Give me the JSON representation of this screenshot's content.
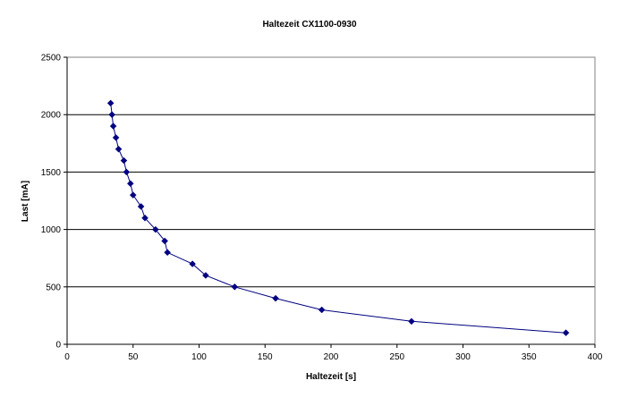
{
  "chart_data": {
    "type": "line",
    "title": "Haltezeit CX1100-0930",
    "xlabel": "Haltezeit [s]",
    "ylabel": "Last [mA]",
    "xlim": [
      0,
      400
    ],
    "ylim": [
      0,
      2500
    ],
    "x_ticks": [
      "0",
      "50",
      "100",
      "150",
      "200",
      "250",
      "300",
      "350",
      "400"
    ],
    "y_ticks": [
      "0",
      "500",
      "1000",
      "1500",
      "2000",
      "2500"
    ],
    "grid": "horizontal",
    "legend": "none",
    "colors": {
      "series": "#000080",
      "grid": "#000000",
      "plot_background": "#ffffff"
    },
    "series": [
      {
        "marker": "diamond",
        "x": [
          33,
          34,
          35,
          37,
          39,
          43,
          45,
          48,
          50,
          56,
          59,
          67,
          74,
          76,
          95,
          105,
          127,
          158,
          193,
          261,
          378
        ],
        "y": [
          2100,
          2000,
          1900,
          1800,
          1700,
          1600,
          1500,
          1400,
          1300,
          1200,
          1100,
          1000,
          900,
          800,
          700,
          600,
          500,
          400,
          300,
          200,
          100
        ]
      }
    ]
  }
}
